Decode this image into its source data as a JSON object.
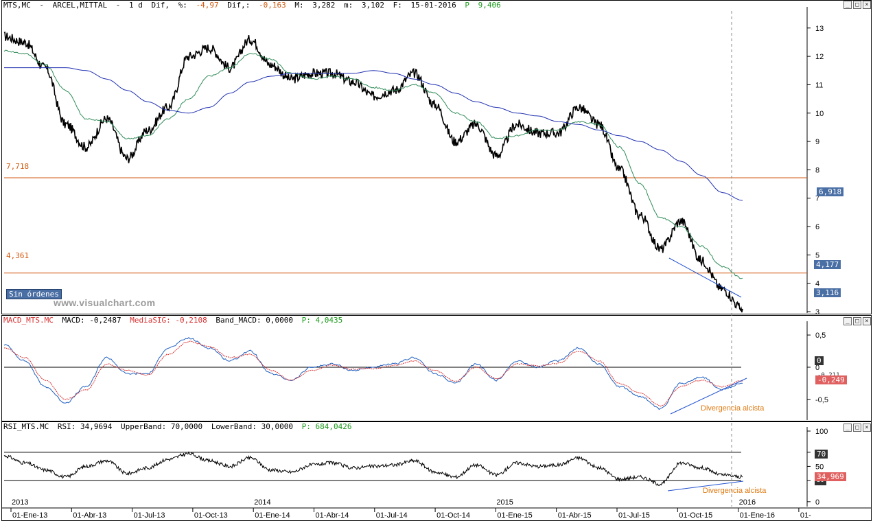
{
  "price_header": {
    "symbol": "MTS,MC",
    "name": "ARCEL,MITTAL",
    "interval": "1 d",
    "dif_label": "Dif,",
    "pct_label": "%:",
    "pct_value": "-4,97",
    "dif2_label": "Dif,:",
    "dif2_value": "-0,163",
    "max_label": "M:",
    "max_value": "3,282",
    "min_label": "m:",
    "min_value": "3,102",
    "date_label": "F:",
    "date_value": "15-01-2016",
    "p_label": "P",
    "p_value": "9,406"
  },
  "macd_header": {
    "name": "MACD_MTS.MC",
    "macd": "MACD: -0,2487",
    "signal": "MediaSIG: -0,2108",
    "band": "Band_MACD: 0,0000",
    "p": "P: 4,0435"
  },
  "rsi_header": {
    "name": "RSI_MTS.MC",
    "rsi": "RSI: 34,9694",
    "upper": "UpperBand: 70,0000",
    "lower": "LowerBand: 30,0000",
    "p": "P: 684,0426"
  },
  "labels": {
    "level_high": "7,718",
    "level_low": "4,361",
    "sin_ordenes": "Sin órdenes",
    "watermark": "www.visualchart.com",
    "tag_ma200": "6,918",
    "tag_ma50": "4,177",
    "tag_price": "3,116",
    "tag_macd_zero": "0",
    "tag_macd_val": "-0,249",
    "tag_macd_sig": "-0,211",
    "tag_rsi_70": "70",
    "tag_rsi_val": "34,969",
    "tag_rsi_30": "30",
    "annot_macd": "Divergencia alcista",
    "annot_rsi": "Divergencia alcista"
  },
  "colors": {
    "price": "#000000",
    "ma_fast": "#2e8b57",
    "ma_slow": "#1f2fb0",
    "level_line": "#d45a10",
    "macd_line": "#2060c0",
    "signal_line": "#d83030",
    "trendline": "#2050d0",
    "annotation": "#e07a10"
  },
  "chart_data": [
    {
      "type": "line",
      "title": "MTS,MC ARCEL,MITTAL 1 d",
      "ylim": [
        3,
        13.6
      ],
      "y_ticks": [
        3,
        4,
        5,
        6,
        7,
        8,
        9,
        10,
        11,
        12,
        13
      ],
      "y_tick_labels": [
        "3",
        "4",
        "5",
        "6",
        "7",
        "8",
        "9",
        "10",
        "11",
        "12",
        "13"
      ],
      "x": [
        "2013-01",
        "2013-02",
        "2013-03",
        "2013-04",
        "2013-05",
        "2013-06",
        "2013-07",
        "2013-08",
        "2013-09",
        "2013-10",
        "2013-11",
        "2013-12",
        "2014-01",
        "2014-02",
        "2014-03",
        "2014-04",
        "2014-05",
        "2014-06",
        "2014-07",
        "2014-08",
        "2014-09",
        "2014-10",
        "2014-11",
        "2014-12",
        "2015-01",
        "2015-02",
        "2015-03",
        "2015-04",
        "2015-05",
        "2015-06",
        "2015-07",
        "2015-08",
        "2015-09",
        "2015-10",
        "2015-11",
        "2015-12",
        "2016-01"
      ],
      "series": [
        {
          "values": [
            12.7,
            12.5,
            11.6,
            9.6,
            8.8,
            9.8,
            8.4,
            9.4,
            10.2,
            12.0,
            12.3,
            11.6,
            12.6,
            11.7,
            11.2,
            11.4,
            11.4,
            11.1,
            10.6,
            10.8,
            11.4,
            10.3,
            9.0,
            9.6,
            8.5,
            9.6,
            9.3,
            9.3,
            10.2,
            9.6,
            8.0,
            6.4,
            5.2,
            6.2,
            4.8,
            3.8,
            3.1
          ]
        },
        {
          "values": [
            12.2,
            12.1,
            11.7,
            10.8,
            9.8,
            9.7,
            9.1,
            9.2,
            9.8,
            10.5,
            11.3,
            11.6,
            12.1,
            11.9,
            11.4,
            11.2,
            11.3,
            11.2,
            10.9,
            10.8,
            11.0,
            10.7,
            10.0,
            9.7,
            9.1,
            9.2,
            9.4,
            9.4,
            9.7,
            9.6,
            8.8,
            7.5,
            6.3,
            6.0,
            5.3,
            4.6,
            4.18
          ]
        },
        {
          "values": [
            11.6,
            11.6,
            11.6,
            11.6,
            11.5,
            11.2,
            10.8,
            10.4,
            10.1,
            10.0,
            10.2,
            10.7,
            11.1,
            11.3,
            11.4,
            11.4,
            11.4,
            11.4,
            11.5,
            11.4,
            11.2,
            11.0,
            10.7,
            10.4,
            10.2,
            10.0,
            9.9,
            9.7,
            9.6,
            9.4,
            9.2,
            9.0,
            8.7,
            8.3,
            7.8,
            7.2,
            6.92
          ]
        }
      ],
      "reference_lines": [
        7.718,
        4.361
      ]
    },
    {
      "type": "line",
      "title": "MACD_MTS.MC",
      "ylim": [
        -0.8,
        0.65
      ],
      "y_ticks": [
        0.5,
        0,
        -0.5
      ],
      "y_tick_labels": [
        "0,5",
        "0",
        "-0,5"
      ],
      "x": [
        "2013-01",
        "2013-02",
        "2013-03",
        "2013-04",
        "2013-05",
        "2013-06",
        "2013-07",
        "2013-08",
        "2013-09",
        "2013-10",
        "2013-11",
        "2013-12",
        "2014-01",
        "2014-02",
        "2014-03",
        "2014-04",
        "2014-05",
        "2014-06",
        "2014-07",
        "2014-08",
        "2014-09",
        "2014-10",
        "2014-11",
        "2014-12",
        "2015-01",
        "2015-02",
        "2015-03",
        "2015-04",
        "2015-05",
        "2015-06",
        "2015-07",
        "2015-08",
        "2015-09",
        "2015-10",
        "2015-11",
        "2015-12",
        "2016-01"
      ],
      "series": [
        {
          "values": [
            0.35,
            0.1,
            -0.3,
            -0.55,
            -0.3,
            0.15,
            -0.1,
            -0.1,
            0.3,
            0.45,
            0.3,
            0.1,
            0.25,
            -0.1,
            -0.2,
            0.0,
            0.05,
            -0.05,
            0.0,
            0.05,
            0.15,
            -0.1,
            -0.25,
            0.05,
            -0.2,
            0.1,
            0.0,
            0.1,
            0.3,
            0.05,
            -0.3,
            -0.45,
            -0.65,
            -0.25,
            -0.15,
            -0.35,
            -0.25
          ]
        },
        {
          "values": [
            0.3,
            0.15,
            -0.2,
            -0.5,
            -0.35,
            0.05,
            -0.05,
            -0.12,
            0.2,
            0.4,
            0.32,
            0.15,
            0.2,
            -0.05,
            -0.2,
            -0.05,
            0.03,
            -0.03,
            -0.02,
            0.03,
            0.1,
            -0.05,
            -0.22,
            0.0,
            -0.18,
            0.05,
            0.02,
            0.06,
            0.25,
            0.1,
            -0.25,
            -0.4,
            -0.6,
            -0.3,
            -0.2,
            -0.3,
            -0.21
          ]
        }
      ],
      "reference_lines": [
        0
      ]
    },
    {
      "type": "line",
      "title": "RSI_MTS.MC",
      "ylim": [
        -5,
        100
      ],
      "y_ticks": [
        100,
        70,
        50,
        30,
        0
      ],
      "y_tick_labels": [
        "100",
        "70",
        "50",
        "30",
        "0"
      ],
      "x": [
        "2013-01",
        "2013-02",
        "2013-03",
        "2013-04",
        "2013-05",
        "2013-06",
        "2013-07",
        "2013-08",
        "2013-09",
        "2013-10",
        "2013-11",
        "2013-12",
        "2014-01",
        "2014-02",
        "2014-03",
        "2014-04",
        "2014-05",
        "2014-06",
        "2014-07",
        "2014-08",
        "2014-09",
        "2014-10",
        "2014-11",
        "2014-12",
        "2015-01",
        "2015-02",
        "2015-03",
        "2015-04",
        "2015-05",
        "2015-06",
        "2015-07",
        "2015-08",
        "2015-09",
        "2015-10",
        "2015-11",
        "2015-12",
        "2016-01"
      ],
      "series": [
        {
          "values": [
            65,
            55,
            45,
            35,
            50,
            58,
            40,
            48,
            60,
            68,
            58,
            50,
            62,
            45,
            42,
            52,
            55,
            48,
            50,
            52,
            58,
            42,
            35,
            52,
            38,
            55,
            50,
            52,
            62,
            48,
            32,
            35,
            25,
            55,
            48,
            38,
            35
          ]
        }
      ],
      "reference_lines": [
        70,
        30
      ]
    }
  ],
  "x_axis": {
    "tick_labels": [
      "01-Ene-13",
      "01-Abr-13",
      "01-Jul-13",
      "01-Oct-13",
      "01-Ene-14",
      "01-Abr-14",
      "01-Jul-14",
      "01-Oct-14",
      "01-Ene-15",
      "01-Abr-15",
      "01-Jul-15",
      "01-Oct-15",
      "01-Ene-16",
      "01-"
    ],
    "years": [
      "2013",
      "2014",
      "2015",
      "2016"
    ]
  }
}
